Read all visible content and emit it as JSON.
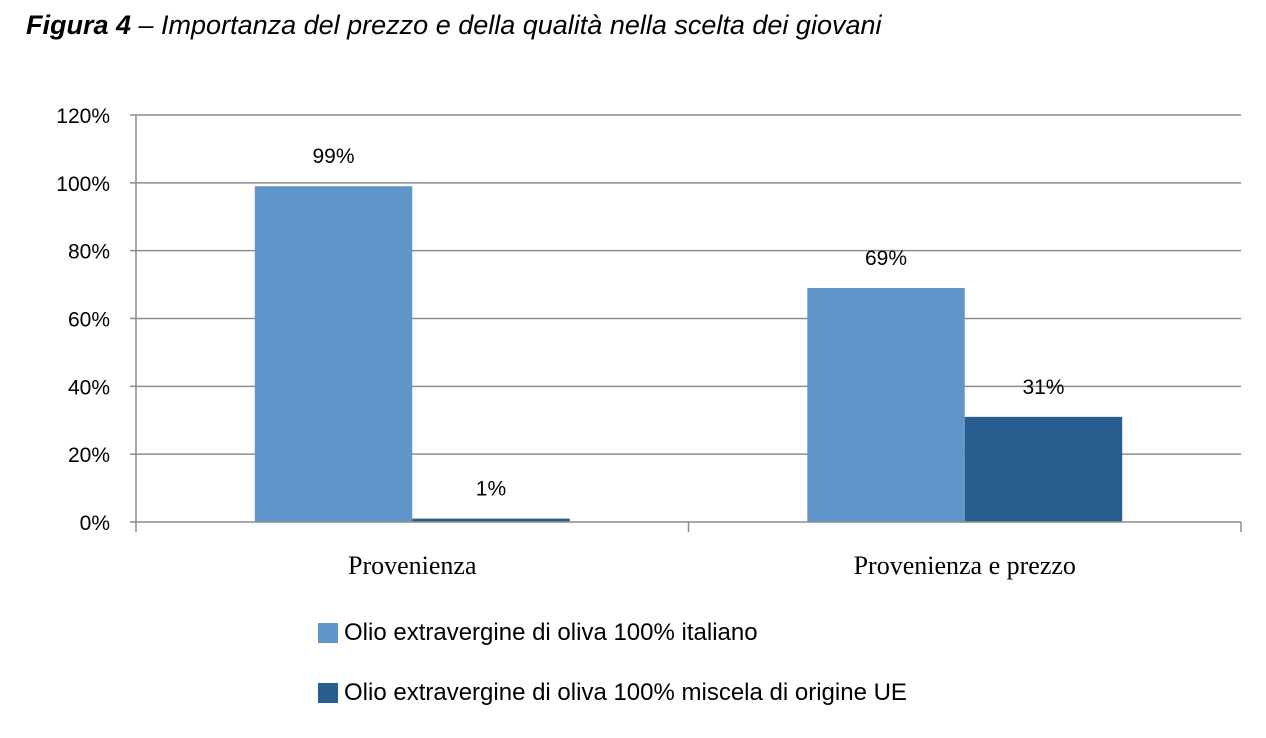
{
  "caption": {
    "label": "Figura 4",
    "text": " – Importanza del prezzo e della qualità nella scelta dei giovani"
  },
  "chart_data": {
    "type": "bar",
    "categories": [
      "Provenienza",
      "Provenienza e prezzo"
    ],
    "series": [
      {
        "name": "Olio extravergine di oliva 100% italiano",
        "values": [
          99,
          69
        ],
        "labels": [
          "99%",
          "69%"
        ],
        "color": "#6095c9"
      },
      {
        "name": "Olio extravergine di oliva 100% miscela di origine UE",
        "values": [
          1,
          31
        ],
        "labels": [
          "1%",
          "31%"
        ],
        "color": "#275d8f"
      }
    ],
    "y_ticks": [
      "0%",
      "20%",
      "40%",
      "60%",
      "80%",
      "100%",
      "120%"
    ],
    "ylim": [
      0,
      120
    ],
    "grid": true,
    "legend_position": "bottom"
  }
}
